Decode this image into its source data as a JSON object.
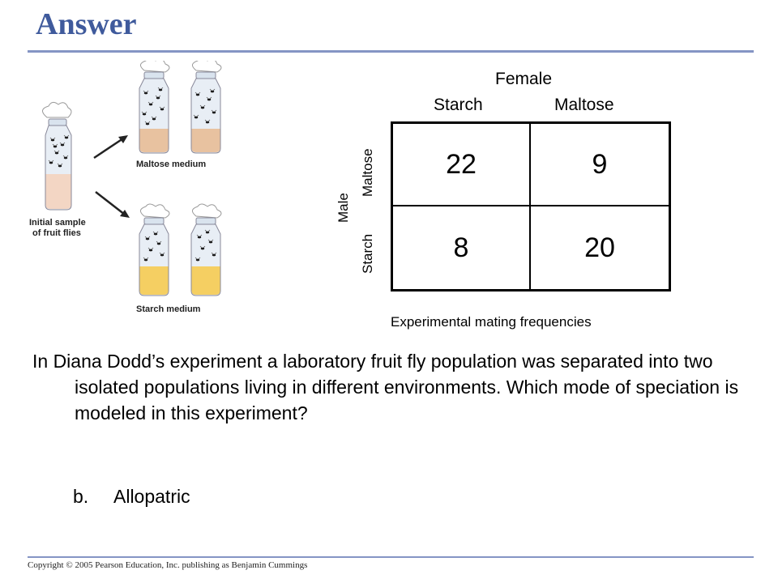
{
  "slide": {
    "title": "Answer",
    "copyright": "Copyright © 2005 Pearson Education, Inc. publishing as Benjamin Cummings"
  },
  "figure": {
    "label_initial_line1": "Initial sample",
    "label_initial_line2": "of fruit flies",
    "label_maltose": "Maltose medium",
    "label_starch": "Starch medium",
    "colors": {
      "maltose_medium": "#e8c2a0",
      "starch_medium": "#f5cf62",
      "initial_medium": "#f3d6c4",
      "cap": "#ffffff"
    }
  },
  "table": {
    "column_group": "Female",
    "column_headers": [
      "Starch",
      "Maltose"
    ],
    "row_group": "Male",
    "row_headers": [
      "Maltose",
      "Starch"
    ],
    "cells": [
      [
        "22",
        "9"
      ],
      [
        "8",
        "20"
      ]
    ],
    "caption": "Experimental mating frequencies"
  },
  "question": {
    "text": "In Diana Dodd’s experiment a laboratory fruit fly population was separated into two isolated populations living in different environments.  Which mode of speciation is modeled in this experiment?"
  },
  "answer": {
    "letter": "b.",
    "text": "Allopatric"
  }
}
